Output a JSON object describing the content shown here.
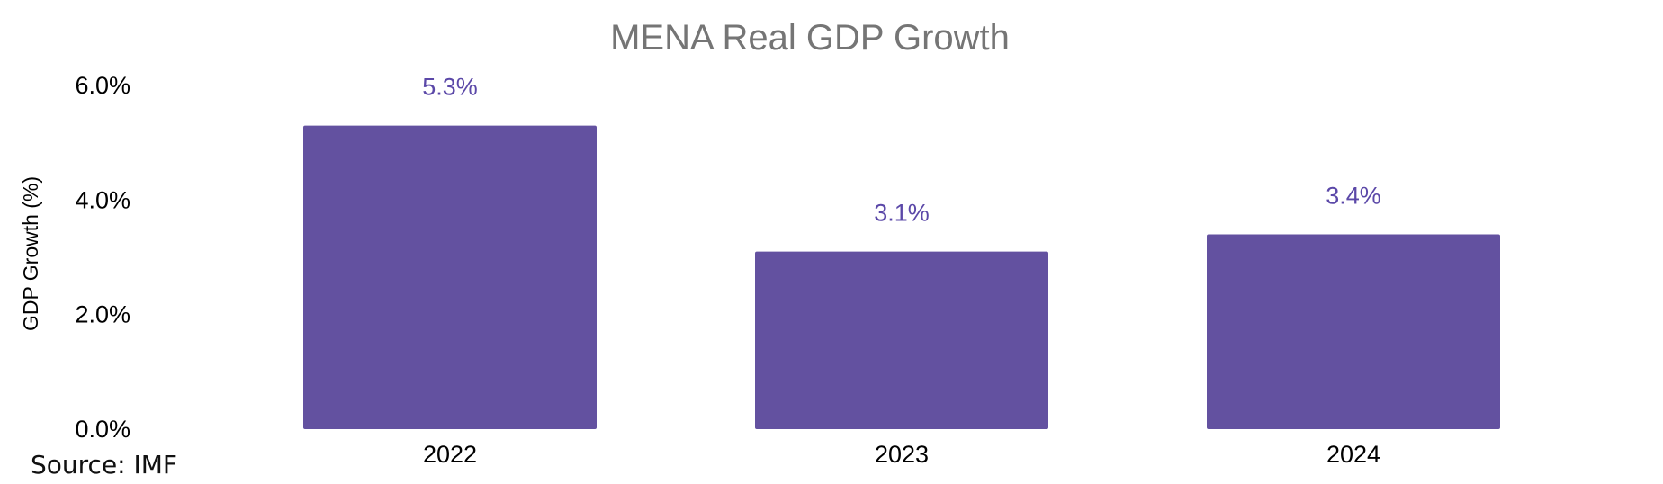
{
  "chart_data": {
    "type": "bar",
    "title": "MENA Real GDP Growth",
    "xlabel": "",
    "ylabel": "GDP Growth (%)",
    "categories": [
      "2022",
      "2023",
      "2024"
    ],
    "values": [
      5.3,
      3.1,
      3.4
    ],
    "value_labels": [
      "5.3%",
      "3.1%",
      "3.4%"
    ],
    "ylim": [
      0,
      6
    ],
    "y_ticks": [
      0,
      2,
      4,
      6
    ],
    "y_tick_labels": [
      "0.0%",
      "2.0%",
      "4.0%",
      "6.0%"
    ],
    "grid": false,
    "legend": "none",
    "bar_color": "#6351A0",
    "label_color": "#5B48A8"
  },
  "source": "Source: IMF"
}
